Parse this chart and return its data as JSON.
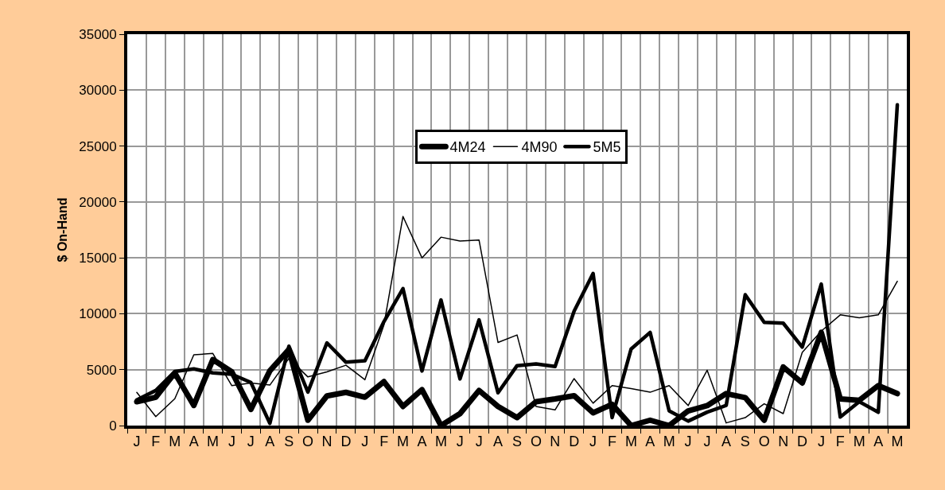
{
  "chart_data": {
    "type": "line",
    "ylabel": "$ On-Hand",
    "categories": [
      "J",
      "F",
      "M",
      "A",
      "M",
      "J",
      "J",
      "A",
      "S",
      "O",
      "N",
      "D",
      "J",
      "F",
      "M",
      "A",
      "M",
      "J",
      "J",
      "A",
      "S",
      "O",
      "N",
      "D",
      "J",
      "F",
      "M",
      "A",
      "M",
      "J",
      "J",
      "A",
      "S",
      "O",
      "N",
      "D",
      "J",
      "F",
      "M",
      "A",
      "M"
    ],
    "series": [
      {
        "name": "4M24",
        "color": "#000000",
        "values": [
          2130,
          2540,
          4700,
          1800,
          5900,
          4800,
          1450,
          4900,
          6800,
          480,
          2650,
          2970,
          2540,
          3930,
          1710,
          3210,
          0,
          1070,
          3140,
          1710,
          710,
          2140,
          2380,
          2670,
          1140,
          1900,
          0,
          480,
          0,
          1310,
          1780,
          2860,
          2500,
          480,
          5240,
          3810,
          8330,
          2380,
          2260,
          3570,
          2860
        ]
      },
      {
        "name": "4M90",
        "color": "#000000",
        "values": [
          2970,
          800,
          2400,
          6330,
          6450,
          3570,
          3800,
          3620,
          6000,
          4350,
          4800,
          5400,
          4100,
          9000,
          18700,
          15000,
          16850,
          16500,
          16600,
          7430,
          8100,
          1700,
          1400,
          4200,
          2000,
          3570,
          3300,
          2980,
          3570,
          1790,
          4950,
          240,
          710,
          1950,
          1070,
          6550,
          8450,
          9900,
          9640,
          9900,
          12900
        ]
      },
      {
        "name": "5M5",
        "color": "#000000",
        "values": [
          2300,
          3140,
          4830,
          5070,
          4710,
          4590,
          3860,
          200,
          7100,
          3000,
          7400,
          5670,
          5800,
          9300,
          12250,
          4880,
          11230,
          4170,
          9450,
          2930,
          5360,
          5520,
          5280,
          10230,
          13600,
          710,
          6850,
          8330,
          1310,
          400,
          1200,
          1800,
          11700,
          9230,
          9160,
          7020,
          12660,
          760,
          2140,
          1190,
          28680
        ]
      }
    ],
    "ylim": [
      0,
      35000
    ],
    "yticks": [
      0,
      5000,
      10000,
      15000,
      20000,
      25000,
      30000,
      35000
    ],
    "grid": true,
    "legend": "top",
    "marker": "none",
    "line_style": "solid"
  }
}
